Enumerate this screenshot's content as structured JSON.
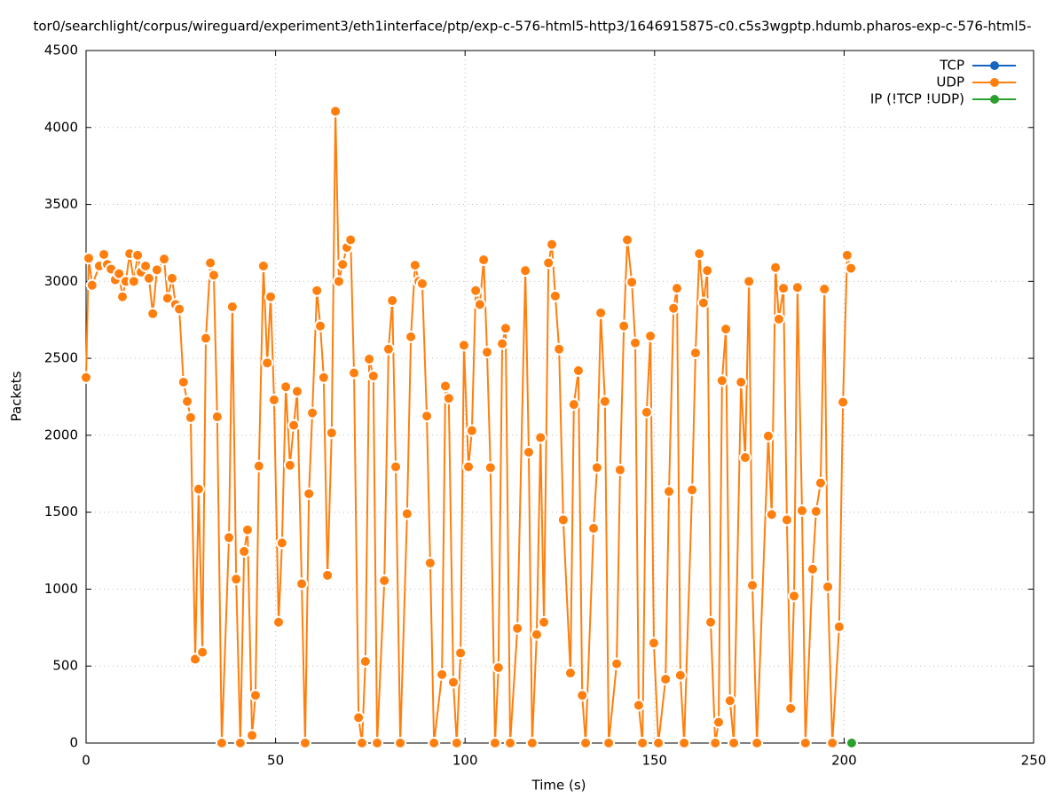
{
  "chart_data": {
    "type": "line",
    "title": "tor0/searchlight/corpus/wireguard/experiment3/eth1interface/ptp/exp-c-576-html5-http3/1646915875-c0.c5s3wgptp.hdumb.pharos-exp-c-576-html5-",
    "xlabel": "Time (s)",
    "ylabel": "Packets",
    "xlim": [
      0,
      250
    ],
    "xticks": [
      0,
      50,
      100,
      150,
      200,
      250
    ],
    "ylim": [
      0,
      4500
    ],
    "yticks": [
      0,
      500,
      1000,
      1500,
      2000,
      2500,
      3000,
      3500,
      4000,
      4500
    ],
    "grid": true,
    "legend": "top-right",
    "series": [
      {
        "name": "TCP",
        "color": "#1565c0",
        "x": [],
        "values": []
      },
      {
        "name": "UDP",
        "color": "#ff7f0e",
        "x": [
          0,
          0.7,
          1.6,
          3.5,
          4.7,
          5.6,
          6.6,
          7.7,
          8.7,
          9.6,
          10.5,
          11.5,
          12.6,
          13.6,
          14.5,
          15.7,
          16.6,
          17.6,
          18.7,
          20.6,
          21.5,
          22.7,
          23.6,
          24.6,
          25.7,
          26.7,
          27.6,
          28.8,
          29.7,
          30.7,
          31.6,
          32.8,
          33.7,
          34.6,
          35.8,
          37.7,
          38.6,
          39.6,
          40.7,
          41.7,
          42.6,
          43.8,
          44.7,
          45.6,
          46.8,
          47.8,
          48.7,
          49.6,
          50.8,
          51.7,
          52.7,
          53.8,
          54.8,
          55.7,
          56.9,
          57.8,
          58.8,
          59.7,
          60.9,
          61.8,
          62.7,
          63.7,
          64.8,
          65.8,
          66.7,
          67.7,
          68.8,
          69.8,
          70.7,
          71.9,
          72.8,
          73.7,
          74.7,
          75.8,
          76.8,
          78.7,
          79.8,
          80.8,
          81.7,
          82.9,
          84.7,
          85.7,
          86.8,
          87.8,
          88.7,
          89.9,
          90.8,
          91.8,
          93.9,
          94.8,
          95.7,
          96.9,
          97.8,
          98.8,
          99.7,
          100.9,
          101.8,
          102.8,
          103.9,
          104.9,
          105.8,
          106.7,
          107.9,
          108.8,
          109.8,
          110.7,
          111.9,
          113.8,
          115.9,
          116.8,
          117.7,
          118.9,
          119.9,
          120.8,
          122.0,
          122.9,
          123.8,
          124.8,
          125.9,
          127.8,
          128.7,
          129.9,
          130.9,
          131.8,
          133.9,
          134.8,
          135.8,
          136.9,
          137.9,
          140.0,
          140.9,
          141.9,
          142.8,
          144.0,
          144.9,
          145.8,
          146.8,
          147.9,
          148.9,
          149.8,
          151.0,
          152.9,
          153.8,
          155.0,
          155.9,
          156.8,
          157.8,
          159.9,
          160.8,
          161.8,
          162.9,
          163.9,
          164.8,
          166.0,
          166.9,
          167.8,
          168.8,
          169.9,
          170.9,
          172.8,
          173.9,
          174.9,
          175.8,
          177.0,
          180.0,
          180.9,
          181.9,
          182.8,
          184.0,
          184.9,
          185.9,
          186.8,
          187.7,
          188.9,
          189.8,
          191.7,
          192.6,
          193.8,
          194.8,
          195.7,
          196.9,
          198.7,
          199.7,
          200.8,
          201.8
        ],
        "values": [
          2375,
          3150,
          2975,
          3100,
          3175,
          3110,
          3080,
          3010,
          3050,
          2900,
          3000,
          3180,
          3000,
          3170,
          3060,
          3100,
          3020,
          2790,
          3075,
          3145,
          2890,
          3020,
          2850,
          2820,
          2345,
          2220,
          2115,
          545,
          1650,
          590,
          2630,
          3120,
          3040,
          2120,
          0,
          1335,
          2835,
          1065,
          0,
          1245,
          1385,
          50,
          310,
          1800,
          3100,
          2470,
          2900,
          2230,
          785,
          1300,
          2315,
          1805,
          2065,
          2285,
          1035,
          0,
          1620,
          2145,
          2940,
          2710,
          2375,
          1090,
          2015,
          4105,
          3000,
          3110,
          3220,
          3270,
          2405,
          165,
          0,
          530,
          2495,
          2385,
          0,
          1055,
          2560,
          2875,
          1795,
          0,
          1490,
          2640,
          3105,
          3000,
          2985,
          2125,
          1170,
          0,
          445,
          2320,
          2240,
          395,
          0,
          585,
          2585,
          1795,
          2030,
          2940,
          2850,
          3140,
          2540,
          1790,
          0,
          490,
          2595,
          2695,
          0,
          745,
          3070,
          1890,
          0,
          705,
          1985,
          785,
          3120,
          3240,
          2905,
          2560,
          1450,
          455,
          2200,
          2420,
          310,
          0,
          1395,
          1790,
          2795,
          2220,
          0,
          515,
          1775,
          2710,
          3270,
          2995,
          2600,
          245,
          0,
          2150,
          2645,
          650,
          0,
          415,
          1635,
          2825,
          2955,
          440,
          0,
          1645,
          2535,
          3180,
          2860,
          3070,
          785,
          0,
          135,
          2355,
          2690,
          275,
          0,
          2345,
          1855,
          3000,
          1025,
          0,
          1995,
          1485,
          3090,
          2755,
          2955,
          1450,
          225,
          955,
          2960,
          1510,
          0,
          1130,
          1505,
          1690,
          2950,
          1015,
          0,
          755,
          2215,
          3170,
          3085
        ]
      },
      {
        "name": "IP (!TCP  !UDP)",
        "color": "#2ca02c",
        "x": [
          202.0
        ],
        "values": [
          0
        ]
      }
    ]
  }
}
